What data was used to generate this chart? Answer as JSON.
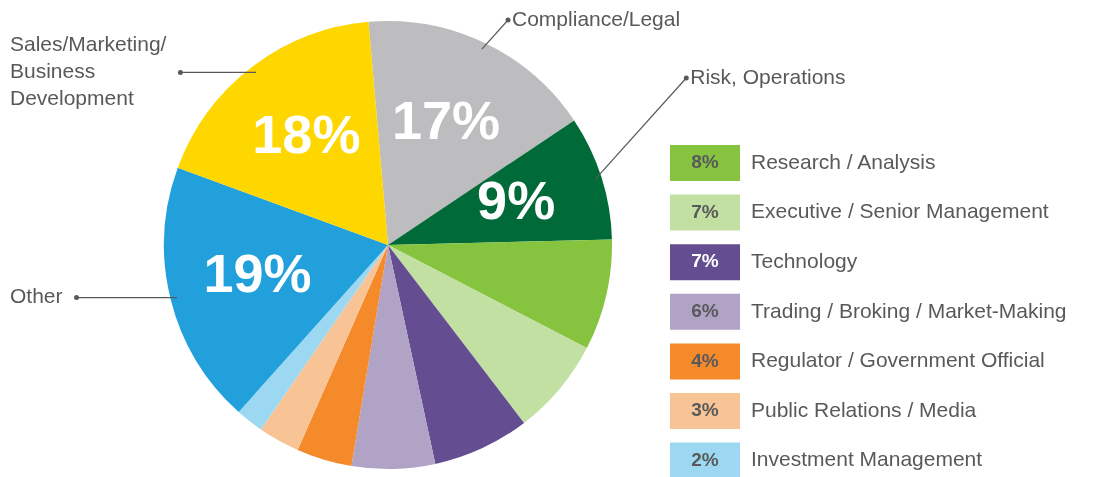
{
  "chart_data": {
    "type": "pie",
    "categories": [
      "Compliance/Legal",
      "Risk, Operations",
      "Research / Analysis",
      "Executive / Senior Management",
      "Technology",
      "Trading / Broking / Market-Making",
      "Regulator / Government Official",
      "Public Relations / Media",
      "Investment Management",
      "Other",
      "Sales/Marketing/Business Development"
    ],
    "values": [
      17,
      9,
      8,
      7,
      7,
      6,
      4,
      3,
      2,
      19,
      18
    ],
    "colors": [
      "#bdbdbf",
      "#006a39",
      "#86c440",
      "#c3e0a3",
      "#644d91",
      "#b1a3c6",
      "#f48a2a",
      "#f9c495",
      "#9dd8f2",
      "#21a0dc",
      "#fed700"
    ],
    "value_labels": [
      "17%",
      "9%",
      "8%",
      "7%",
      "7%",
      "6%",
      "4%",
      "3%",
      "2%",
      "19%",
      "18%"
    ],
    "legend": "right"
  }
}
